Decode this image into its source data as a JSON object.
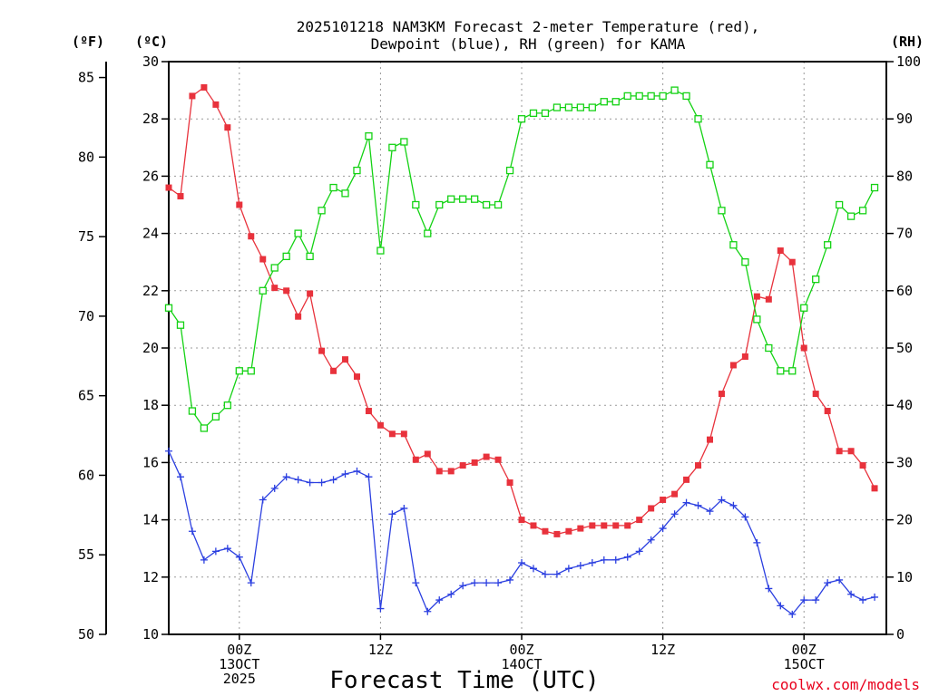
{
  "chart_data": {
    "type": "line",
    "title": "2025101218 NAM3KM Forecast 2-meter Temperature (red),",
    "title_line2": "Dewpoint (blue), RH (green) for KAMA",
    "xlabel": "Forecast Time (UTC)",
    "credit": "coolwx.com/models",
    "unit_labels": {
      "fahrenheit": "(ºF)",
      "celsius": "(ºC)",
      "rh": "(RH)"
    },
    "x_hours": {
      "start": 0,
      "end": 61
    },
    "x_ticks": [
      {
        "hour": 6,
        "line1": "00Z",
        "line2": "13OCT",
        "line3": "2025"
      },
      {
        "hour": 18,
        "line1": "12Z",
        "line2": "",
        "line3": ""
      },
      {
        "hour": 30,
        "line1": "00Z",
        "line2": "14OCT",
        "line3": ""
      },
      {
        "hour": 42,
        "line1": "12Z",
        "line2": "",
        "line3": ""
      },
      {
        "hour": 54,
        "line1": "00Z",
        "line2": "15OCT",
        "line3": ""
      }
    ],
    "fahrenheit_axis": {
      "min": 50,
      "max": 85,
      "ticks": [
        "50",
        "55",
        "60",
        "65",
        "70",
        "75",
        "80",
        "85"
      ]
    },
    "celsius_axis": {
      "min": 10,
      "max": 30,
      "ticks": [
        "10",
        "12",
        "14",
        "16",
        "18",
        "20",
        "22",
        "24",
        "26",
        "28",
        "30"
      ]
    },
    "rh_axis": {
      "min": 0,
      "max": 100,
      "ticks": [
        "0",
        "10",
        "20",
        "30",
        "40",
        "50",
        "60",
        "70",
        "80",
        "90",
        "100"
      ]
    },
    "series": [
      {
        "name": "2-meter Temperature",
        "units": "C",
        "color": "#e8323c",
        "marker": "filled-square",
        "values": [
          25.6,
          25.3,
          28.8,
          29.1,
          28.5,
          27.7,
          25.0,
          23.9,
          23.1,
          22.1,
          22.0,
          21.1,
          21.9,
          19.9,
          19.2,
          19.6,
          19.0,
          17.8,
          17.3,
          17.0,
          17.0,
          16.1,
          16.3,
          15.7,
          15.7,
          15.9,
          16.0,
          16.2,
          16.1,
          15.3,
          14.0,
          13.8,
          13.6,
          13.5,
          13.6,
          13.7,
          13.8,
          13.8,
          13.8,
          13.8,
          14.0,
          14.4,
          14.7,
          14.9,
          15.4,
          15.9,
          16.8,
          18.4,
          19.4,
          19.7,
          21.8,
          21.7,
          23.4,
          23.0,
          20.0,
          18.4,
          17.8,
          16.4,
          16.4,
          15.9,
          15.1
        ]
      },
      {
        "name": "Dewpoint",
        "units": "C",
        "color": "#2b3fe0",
        "marker": "plus",
        "values": [
          16.4,
          15.5,
          13.6,
          12.6,
          12.9,
          13.0,
          12.7,
          11.8,
          14.7,
          15.1,
          15.5,
          15.4,
          15.3,
          15.3,
          15.4,
          15.6,
          15.7,
          15.5,
          10.9,
          14.2,
          14.4,
          11.8,
          10.8,
          11.2,
          11.4,
          11.7,
          11.8,
          11.8,
          11.8,
          11.9,
          12.5,
          12.3,
          12.1,
          12.1,
          12.3,
          12.4,
          12.5,
          12.6,
          12.6,
          12.7,
          12.9,
          13.3,
          13.7,
          14.2,
          14.6,
          14.5,
          14.3,
          14.7,
          14.5,
          14.1,
          13.2,
          11.6,
          11.0,
          10.7,
          11.2,
          11.2,
          11.8,
          11.9,
          11.4,
          11.2,
          11.3
        ]
      },
      {
        "name": "RH",
        "units": "%",
        "color": "#14d214",
        "marker": "open-square",
        "values": [
          57,
          54,
          39,
          36,
          38,
          40,
          46,
          46,
          60,
          64,
          66,
          70,
          66,
          74,
          78,
          77,
          81,
          87,
          67,
          85,
          86,
          75,
          70,
          75,
          76,
          76,
          76,
          75,
          75,
          81,
          90,
          91,
          91,
          92,
          92,
          92,
          92,
          93,
          93,
          94,
          94,
          94,
          94,
          95,
          94,
          90,
          82,
          74,
          68,
          65,
          55,
          50,
          46,
          46,
          57,
          62,
          68,
          75,
          73,
          74,
          78
        ]
      }
    ]
  }
}
